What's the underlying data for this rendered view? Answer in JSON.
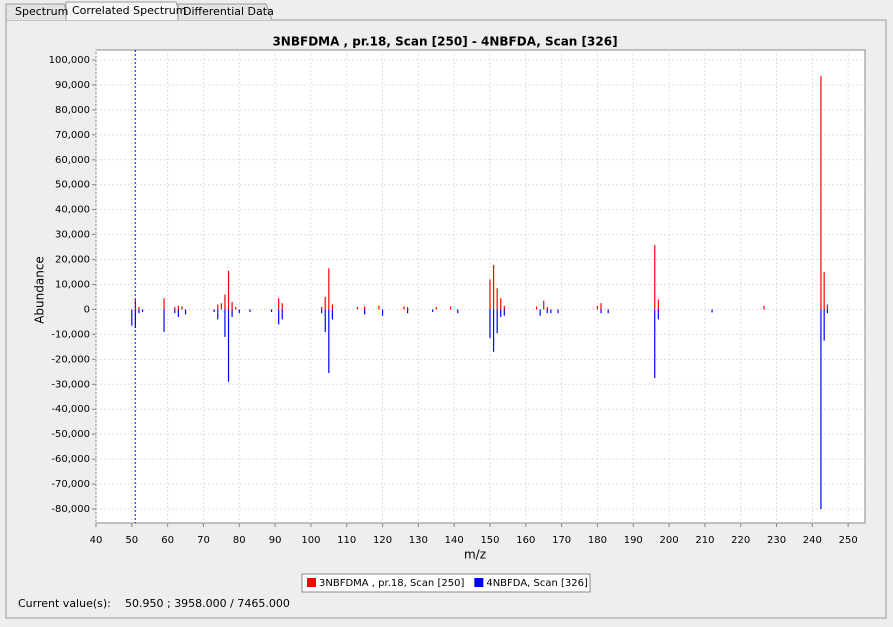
{
  "tabs": [
    "Spectrum",
    "Correlated Spectrum",
    "Differential Data"
  ],
  "chart_data": {
    "type": "stem",
    "title": "3NBFDMA , pr.18, Scan [250] - 4NBFDA, Scan [326]",
    "x_label": "m/z",
    "y_label": "Abundance",
    "xlim": [
      40,
      254.7
    ],
    "ylim": [
      -85600,
      104000
    ],
    "xticks": [
      40,
      50,
      60,
      70,
      80,
      90,
      100,
      110,
      120,
      130,
      140,
      150,
      160,
      170,
      180,
      190,
      200,
      210,
      220,
      230,
      240,
      250
    ],
    "yticks": [
      {
        "value": 100000,
        "label": "100,000"
      },
      {
        "value": 90000,
        "label": "90,000"
      },
      {
        "value": 80000,
        "label": "80,000"
      },
      {
        "value": 70000,
        "label": "70,000"
      },
      {
        "value": 60000,
        "label": "60,000"
      },
      {
        "value": 50000,
        "label": "50,000"
      },
      {
        "value": 40000,
        "label": "40,000"
      },
      {
        "value": 30000,
        "label": "30,000"
      },
      {
        "value": 20000,
        "label": "20,000"
      },
      {
        "value": 10000,
        "label": "10,000"
      },
      0,
      {
        "value": -10000,
        "label": "-10,000"
      },
      {
        "value": -20000,
        "label": "-20,000"
      },
      {
        "value": -30000,
        "label": "-30,000"
      },
      {
        "value": -40000,
        "label": "-40,000"
      },
      {
        "value": -50000,
        "label": "-50,000"
      },
      {
        "value": -60000,
        "label": "-60,000"
      },
      {
        "value": -70000,
        "label": "-70,000"
      },
      {
        "value": -80000,
        "label": "-80,000"
      }
    ],
    "grid": true,
    "cursor_x": 50.95,
    "cursor_color": "#0000ff",
    "series": [
      {
        "name": "3NBFDMA , pr.18, Scan [250]",
        "color": "#ff0000",
        "x": [
          51,
          52,
          59,
          62,
          63,
          64,
          74,
          75,
          76,
          77,
          78,
          79,
          91,
          92,
          103,
          104,
          105,
          106,
          113,
          115,
          119,
          126,
          127,
          135,
          139,
          150,
          151,
          152,
          153,
          154,
          163,
          165,
          166,
          180,
          181,
          196,
          197,
          226.5,
          242.4,
          243.3,
          244.2
        ],
        "values": [
          3958,
          1000,
          4500,
          1000,
          1500,
          1200,
          2000,
          2500,
          6000,
          15500,
          3000,
          1000,
          4500,
          2500,
          1000,
          5000,
          16500,
          2000,
          1000,
          1200,
          1500,
          1200,
          1000,
          1000,
          1200,
          12000,
          17800,
          8500,
          4500,
          1500,
          1200,
          3500,
          1000,
          1500,
          2500,
          25800,
          4000,
          1500,
          93600,
          15000,
          2000
        ]
      },
      {
        "name": "4NBFDA, Scan [326]",
        "color": "#0000ff",
        "x": [
          50,
          51,
          52,
          53,
          59,
          62,
          63,
          65,
          73,
          74,
          76,
          77,
          78,
          80,
          83,
          89,
          91,
          92,
          103,
          104,
          105,
          106,
          115,
          120,
          127,
          134,
          141,
          150,
          151,
          152,
          153,
          154,
          164,
          166,
          167,
          169,
          181,
          183,
          196,
          197,
          212,
          242.4,
          243.3,
          244.2
        ],
        "values": [
          -6500,
          -7465,
          -1500,
          -1000,
          -9000,
          -1500,
          -3000,
          -2000,
          -1000,
          -4000,
          -11000,
          -29000,
          -3000,
          -1500,
          -1000,
          -1000,
          -6000,
          -4000,
          -1500,
          -9000,
          -25500,
          -4000,
          -2000,
          -2500,
          -1500,
          -1000,
          -1500,
          -11500,
          -17000,
          -9500,
          -3000,
          -2500,
          -2500,
          -1500,
          -1500,
          -1500,
          -1500,
          -1500,
          -27500,
          -4000,
          -1200,
          -80000,
          -12500,
          -1500
        ]
      }
    ]
  },
  "status": {
    "label": "Current value(s):",
    "value": "50.950 ; 3958.000 / 7465.000"
  }
}
